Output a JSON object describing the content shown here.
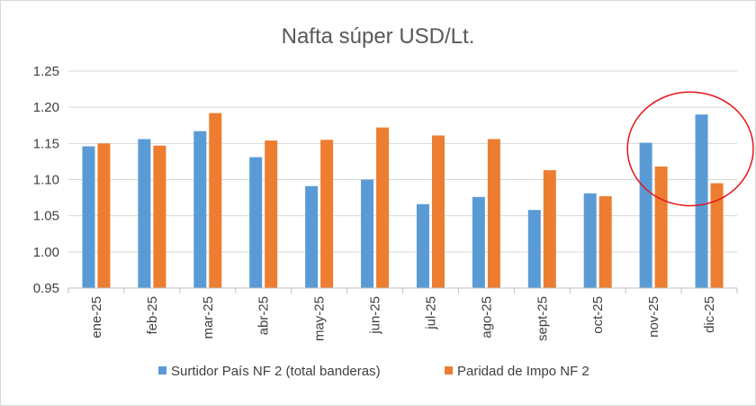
{
  "chart_data": {
    "type": "bar",
    "title": "Nafta súper  USD/Lt.",
    "xlabel": "",
    "ylabel": "",
    "ylim": [
      0.95,
      1.25
    ],
    "yticks": [
      "0.95",
      "1.00",
      "1.05",
      "1.10",
      "1.15",
      "1.20",
      "1.25"
    ],
    "ytick_values": [
      0.95,
      1.0,
      1.05,
      1.1,
      1.15,
      1.2,
      1.25
    ],
    "grid": "horizontal",
    "legend": "bottom",
    "categories": [
      "ene-25",
      "feb-25",
      "mar-25",
      "abr-25",
      "may-25",
      "jun-25",
      "jul-25",
      "ago-25",
      "sept-25",
      "oct-25",
      "nov-25",
      "dic-25"
    ],
    "series": [
      {
        "name": "Surtidor País NF 2 (total banderas)",
        "color": "#5b9bd5",
        "values": [
          1.146,
          1.156,
          1.167,
          1.131,
          1.091,
          1.1,
          1.066,
          1.076,
          1.058,
          1.081,
          1.151,
          1.19
        ]
      },
      {
        "name": "Paridad de Impo NF 2",
        "color": "#ed7d31",
        "values": [
          1.15,
          1.147,
          1.192,
          1.154,
          1.155,
          1.172,
          1.161,
          1.156,
          1.113,
          1.077,
          1.118,
          1.095
        ]
      }
    ],
    "annotation": {
      "shape": "ellipse",
      "color": "#e8141a",
      "around_categories": [
        "nov-25",
        "dic-25"
      ]
    }
  }
}
